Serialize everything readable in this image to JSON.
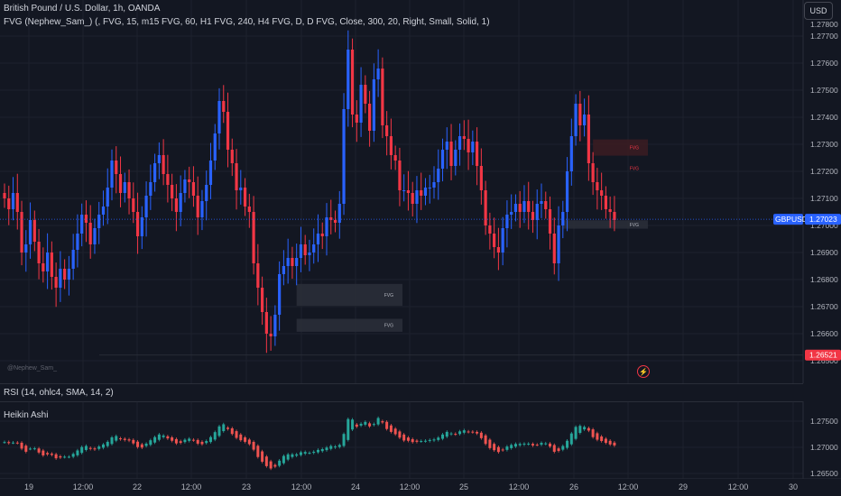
{
  "header": {
    "symbol_title": "British Pound / U.S. Dollar, 1h, OANDA",
    "indicator_legend": "FVG (Nephew_Sam_) (, FVG, 15, m15 FVG, 60, H1 FVG, 240, H4 FVG, D, D FVG, Close, 300, 20, Right, Small, Solid, 1)",
    "currency_button": "USD"
  },
  "price_axis": {
    "labels": [
      "1.27700",
      "1.27600",
      "1.27500",
      "1.27400",
      "1.27300",
      "1.27200",
      "1.27100",
      "1.27000",
      "1.26900",
      "1.26800",
      "1.26700",
      "1.26600",
      "1.26500"
    ],
    "top_partial": "1.27800",
    "current_symbol": "GBPUSD",
    "current_price": "1.27023",
    "low_price": "1.26521"
  },
  "fvg_zones": [
    {
      "label": "FVG",
      "type": "bullish",
      "from_bar": 68,
      "top": 1.26784,
      "bottom": 1.26703
    },
    {
      "label": "FVG",
      "type": "bullish",
      "from_bar": 68,
      "top": 1.26655,
      "bottom": 1.26607
    },
    {
      "label": "FVG",
      "type": "bearish",
      "from_bar": 137,
      "top": 1.27318,
      "bottom": 1.27258
    },
    {
      "label": "FVG",
      "type": "bearish",
      "from_bar": 139,
      "top": 1.27212,
      "bottom": 1.27212
    },
    {
      "label": "FVG",
      "type": "bullish",
      "from_bar": 130,
      "top": 1.27019,
      "bottom": 1.26988
    }
  ],
  "watermark": "@Nephew_Sam_",
  "panes": {
    "rsi_label": "RSI (14, ohlc4, SMA, 14, 2)",
    "heikin_label": "Heikin Ashi",
    "heikin_axis": [
      "1.27500",
      "1.27000",
      "1.26500"
    ]
  },
  "time_axis": [
    "19",
    "12:00",
    "22",
    "12:00",
    "23",
    "12:00",
    "24",
    "12:00",
    "25",
    "12:00",
    "26",
    "12:00",
    "29",
    "12:00",
    "30"
  ],
  "colors": {
    "background": "#131722",
    "bull_candle": "#2962ff",
    "bear_candle": "#f23645",
    "ha_bull": "#26a69a",
    "ha_bear": "#ef5350",
    "price_tag": "#2962ff",
    "low_tag": "#f23645",
    "fvg_bull_fill": "#2a2e39",
    "fvg_bear_fill": "#3a1c22"
  },
  "chart_data": {
    "type": "candlestick",
    "symbol": "GBPUSD",
    "timeframe": "1h",
    "ylim": [
      1.2648,
      1.2789
    ],
    "bar_closes": [
      1.271,
      1.2706,
      1.2712,
      1.2705,
      1.269,
      1.2693,
      1.2702,
      1.2694,
      1.2686,
      1.2683,
      1.269,
      1.2681,
      1.2677,
      1.2684,
      1.268,
      1.2684,
      1.2691,
      1.2697,
      1.2704,
      1.2701,
      1.2693,
      1.2699,
      1.2704,
      1.2707,
      1.2714,
      1.2724,
      1.2719,
      1.2712,
      1.2716,
      1.271,
      1.2705,
      1.2696,
      1.2703,
      1.2711,
      1.2716,
      1.2723,
      1.2726,
      1.2719,
      1.2715,
      1.271,
      1.2705,
      1.2712,
      1.2717,
      1.2716,
      1.2711,
      1.2703,
      1.2709,
      1.2715,
      1.2724,
      1.2734,
      1.2746,
      1.2742,
      1.2728,
      1.2723,
      1.2713,
      1.2714,
      1.2707,
      1.2705,
      1.2686,
      1.2677,
      1.2668,
      1.266,
      1.2659,
      1.2667,
      1.2682,
      1.2685,
      1.2688,
      1.2685,
      1.2688,
      1.2693,
      1.2689,
      1.269,
      1.2693,
      1.2697,
      1.2696,
      1.2703,
      1.2702,
      1.2701,
      1.2708,
      1.2743,
      1.2765,
      1.2741,
      1.2738,
      1.2752,
      1.2745,
      1.2735,
      1.2754,
      1.2758,
      1.2737,
      1.2733,
      1.2726,
      1.2724,
      1.2713,
      1.2713,
      1.2712,
      1.2708,
      1.2713,
      1.2711,
      1.2714,
      1.2714,
      1.2716,
      1.2721,
      1.2728,
      1.2731,
      1.2722,
      1.2728,
      1.2733,
      1.2732,
      1.2727,
      1.2731,
      1.2722,
      1.2713,
      1.27,
      1.2697,
      1.2692,
      1.269,
      1.2699,
      1.2704,
      1.2705,
      1.2708,
      1.2705,
      1.2709,
      1.2705,
      1.2702,
      1.2708,
      1.2709,
      1.2706,
      1.2697,
      1.2686,
      1.27,
      1.2705,
      1.272,
      1.2733,
      1.2745,
      1.2737,
      1.2741,
      1.2723,
      1.2716,
      1.2713,
      1.2711,
      1.2706,
      1.2705,
      1.2702
    ]
  }
}
